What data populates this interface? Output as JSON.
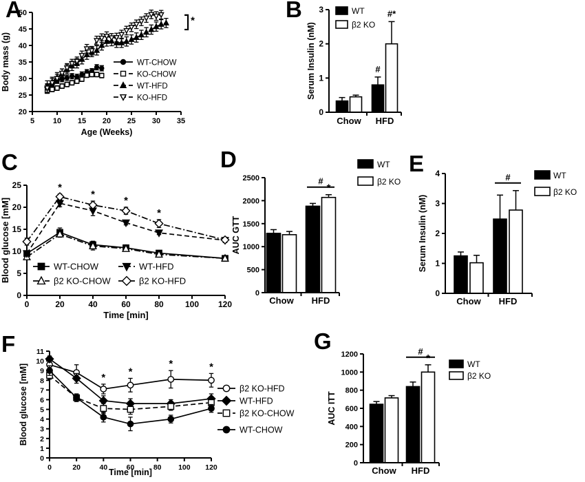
{
  "figure": {
    "background": "#ffffff",
    "ink": "#000000"
  },
  "chart_data": [
    {
      "panel_label": "A",
      "type": "line",
      "xlabel": "Age (Weeks)",
      "ylabel": "Body mass (g)",
      "xlim": [
        5,
        35
      ],
      "xticks": [
        5,
        10,
        15,
        20,
        25,
        30,
        35
      ],
      "ylim": [
        20,
        50
      ],
      "yticks": [
        20,
        25,
        30,
        35,
        40,
        45,
        50
      ],
      "legend_position": "inside-right",
      "series": [
        {
          "name": "WT-CHOW",
          "marker": "circle",
          "fill": "filled",
          "linestyle": "solid",
          "x": [
            8,
            9,
            10,
            11,
            12,
            13,
            14,
            15,
            16,
            17,
            18,
            19
          ],
          "y": [
            27.4,
            28.2,
            29.3,
            29.8,
            30.2,
            30.7,
            30.5,
            31.2,
            31.9,
            32.2,
            33.4,
            33.1
          ],
          "err": 0.8
        },
        {
          "name": "KO-CHOW",
          "marker": "square",
          "fill": "open",
          "linestyle": "dashed",
          "x": [
            8,
            9,
            10,
            11,
            12,
            13,
            14,
            15,
            16,
            17,
            18,
            19
          ],
          "y": [
            26.2,
            26.7,
            27.1,
            27.7,
            28.2,
            28.7,
            29.2,
            29.8,
            31.0,
            31.2,
            31.2,
            30.9
          ],
          "err": 0.7
        },
        {
          "name": "WT-HFD",
          "marker": "triangle-up",
          "fill": "filled",
          "linestyle": "dashed",
          "x": [
            8,
            9,
            10,
            11,
            12,
            13,
            14,
            15,
            16,
            17,
            18,
            19,
            20,
            21,
            22,
            23,
            24,
            25,
            26,
            27,
            28,
            29,
            30,
            31,
            32
          ],
          "y": [
            27.9,
            29.0,
            30.4,
            31.5,
            32.8,
            33.8,
            34.6,
            35.8,
            37.2,
            38.0,
            38.5,
            40.0,
            41.2,
            41.3,
            40.8,
            40.8,
            41.2,
            41.8,
            42.4,
            43.2,
            44.0,
            44.8,
            45.7,
            46.4,
            46.8
          ],
          "err": 1.4
        },
        {
          "name": "KO-HFD",
          "marker": "triangle-down",
          "fill": "open",
          "linestyle": "dashed",
          "x": [
            8,
            9,
            10,
            11,
            12,
            13,
            14,
            15,
            16,
            17,
            18,
            19,
            20,
            21,
            22,
            23,
            24,
            25,
            26,
            27,
            28,
            29,
            30,
            31
          ],
          "y": [
            27.1,
            28.7,
            30.0,
            31.6,
            33.2,
            34.5,
            35.2,
            37.0,
            39.0,
            38.4,
            41.5,
            42.2,
            42.8,
            42.3,
            42.4,
            43.3,
            44.5,
            45.5,
            46.4,
            47.3,
            48.3,
            49.4,
            48.9,
            49.3
          ],
          "err": 1.3
        }
      ],
      "annotations": [
        {
          "type": "bracket",
          "x": 36.4,
          "y1": 44.8,
          "y2": 49.2,
          "text": "*"
        }
      ]
    },
    {
      "panel_label": "B",
      "type": "bar",
      "ylabel": "Serum Insulin (nM)",
      "ylim": [
        0,
        3
      ],
      "yticks": [
        0,
        1,
        2,
        3
      ],
      "categories": [
        "Chow",
        "HFD"
      ],
      "series": [
        {
          "name": "WT",
          "fill": "filled",
          "values": [
            0.33,
            0.8
          ],
          "errors": [
            0.1,
            0.23
          ]
        },
        {
          "name": "β2 KO",
          "fill": "open",
          "values": [
            0.45,
            2.0
          ],
          "errors": [
            0.05,
            0.65
          ]
        }
      ],
      "annotations": [
        {
          "type": "text",
          "text": "#",
          "category": 1,
          "series": 0
        },
        {
          "type": "text",
          "text": "#*",
          "category": 1,
          "series": 1
        }
      ]
    },
    {
      "panel_label": "C",
      "type": "line",
      "xlabel": "Time [min]",
      "ylabel": "Blood glucose [mM]",
      "xlim": [
        0,
        120
      ],
      "xticks": [
        0,
        20,
        40,
        60,
        80,
        100,
        120
      ],
      "ylim": [
        0,
        25
      ],
      "yticks": [
        0,
        5,
        10,
        15,
        20,
        25
      ],
      "legend_position": "inside-bottom",
      "series": [
        {
          "name": "WT-CHOW",
          "marker": "square",
          "fill": "filled",
          "linestyle": "solid",
          "x": [
            0,
            20,
            40,
            60,
            80,
            120
          ],
          "y": [
            9.5,
            14.3,
            11.5,
            10.8,
            9.6,
            8.4
          ],
          "err": [
            0.5,
            1.0,
            0.8,
            0.5,
            0.6,
            0.3
          ]
        },
        {
          "name": "β2 KO-CHOW",
          "marker": "triangle-up",
          "fill": "open",
          "linestyle": "dashdot",
          "x": [
            0,
            20,
            40,
            60,
            80,
            120
          ],
          "y": [
            8.7,
            13.9,
            11.2,
            10.6,
            9.3,
            8.4
          ],
          "err": [
            0.4,
            0.7,
            0.9,
            0.4,
            0.5,
            0.3
          ]
        },
        {
          "name": "WT-HFD",
          "marker": "triangle-down",
          "fill": "filled",
          "linestyle": "dashed",
          "x": [
            0,
            20,
            40,
            60,
            80,
            120
          ],
          "y": [
            9.5,
            20.9,
            19.2,
            16.5,
            14.2,
            12.5
          ],
          "err": [
            0.6,
            0.8,
            1.1,
            0.5,
            0.4,
            0.5
          ]
        },
        {
          "name": "β2 KO-HFD",
          "marker": "diamond",
          "fill": "open",
          "linestyle": "dashdot",
          "x": [
            0,
            20,
            40,
            60,
            80,
            120
          ],
          "y": [
            12.2,
            22.4,
            20.5,
            19.2,
            16.3,
            12.6
          ],
          "err": [
            0.8,
            0.6,
            0.9,
            0.8,
            0.9,
            0.6
          ]
        }
      ],
      "annotations": [
        {
          "type": "stars",
          "series": 3,
          "xs": [
            20,
            40,
            60,
            80
          ],
          "text": "*"
        }
      ]
    },
    {
      "panel_label": "D",
      "type": "bar",
      "ylabel": "AUC GTT",
      "ylim": [
        0,
        2500
      ],
      "yticks": [
        0,
        500,
        1000,
        1500,
        2000,
        2500
      ],
      "categories": [
        "Chow",
        "HFD"
      ],
      "series": [
        {
          "name": "WT",
          "fill": "filled",
          "values": [
            1290,
            1880
          ],
          "errors": [
            80,
            60
          ]
        },
        {
          "name": "β2 KO",
          "fill": "open",
          "values": [
            1260,
            2070
          ],
          "errors": [
            70,
            60
          ]
        }
      ],
      "annotations": [
        {
          "type": "hash-line",
          "category": 1,
          "text": "#"
        },
        {
          "type": "star",
          "category": 1,
          "series": 1,
          "text": "*"
        }
      ]
    },
    {
      "panel_label": "E",
      "type": "bar",
      "ylabel": "Serum Insulin (nM)",
      "ylim": [
        0,
        4
      ],
      "yticks": [
        0,
        1,
        2,
        3,
        4
      ],
      "categories": [
        "Chow",
        "HFD"
      ],
      "series": [
        {
          "name": "WT",
          "fill": "filled",
          "values": [
            1.25,
            2.48
          ],
          "errors": [
            0.13,
            0.8
          ]
        },
        {
          "name": "β2 KO",
          "fill": "open",
          "values": [
            1.02,
            2.78
          ],
          "errors": [
            0.25,
            0.65
          ]
        }
      ],
      "annotations": [
        {
          "type": "hash-line",
          "category": 1,
          "text": "#"
        }
      ]
    },
    {
      "panel_label": "F",
      "type": "line",
      "xlabel": "Time [min]",
      "ylabel": "Blood glucose [mM]",
      "xlim": [
        0,
        120
      ],
      "xticks": [
        0,
        20,
        40,
        60,
        80,
        100,
        120
      ],
      "ylim": [
        0,
        11
      ],
      "yticks": [
        0,
        1,
        2,
        3,
        4,
        5,
        6,
        7,
        8,
        9,
        10,
        11
      ],
      "legend_position": "outside-right",
      "series": [
        {
          "name": "β2 KO-HFD",
          "marker": "circle",
          "fill": "open",
          "linestyle": "solid",
          "x": [
            0,
            20,
            40,
            60,
            90,
            120
          ],
          "y": [
            9.6,
            8.8,
            7.1,
            7.5,
            8.1,
            8.0
          ],
          "err": [
            0.5,
            0.8,
            0.5,
            0.7,
            0.9,
            0.7
          ]
        },
        {
          "name": "WT-HFD",
          "marker": "diamond",
          "fill": "filled",
          "linestyle": "solid",
          "x": [
            0,
            20,
            40,
            60,
            90,
            120
          ],
          "y": [
            10.2,
            8.2,
            5.9,
            5.6,
            5.6,
            6.1
          ],
          "err": [
            0.3,
            0.5,
            0.5,
            0.5,
            0.4,
            0.5
          ]
        },
        {
          "name": "β2 KO-CHOW",
          "marker": "square",
          "fill": "open",
          "linestyle": "dashed",
          "x": [
            0,
            20,
            40,
            60,
            90,
            120
          ],
          "y": [
            8.5,
            6.2,
            5.1,
            5.0,
            5.3,
            5.7
          ],
          "err": [
            0.4,
            0.3,
            0.5,
            0.5,
            0.4,
            0.5
          ]
        },
        {
          "name": "WT-CHOW",
          "marker": "circle",
          "fill": "filled",
          "linestyle": "solid",
          "x": [
            0,
            20,
            40,
            60,
            90,
            120
          ],
          "y": [
            9.0,
            6.2,
            4.2,
            3.5,
            4.0,
            5.1
          ],
          "err": [
            0.5,
            0.4,
            0.5,
            0.7,
            0.4,
            0.4
          ]
        }
      ],
      "annotations": [
        {
          "type": "stars",
          "series": 0,
          "xs": [
            40,
            60,
            90,
            120
          ],
          "text": "*"
        }
      ]
    },
    {
      "panel_label": "G",
      "type": "bar",
      "ylabel": "AUC ITT",
      "ylim": [
        0,
        1200
      ],
      "yticks": [
        0,
        200,
        400,
        600,
        800,
        1000,
        1200
      ],
      "categories": [
        "Chow",
        "HFD"
      ],
      "series": [
        {
          "name": "WT",
          "fill": "filled",
          "values": [
            645,
            840
          ],
          "errors": [
            30,
            50
          ]
        },
        {
          "name": "β2 KO",
          "fill": "open",
          "values": [
            715,
            1000
          ],
          "errors": [
            25,
            80
          ]
        }
      ],
      "annotations": [
        {
          "type": "hash-line",
          "category": 1,
          "text": "#"
        },
        {
          "type": "star",
          "category": 1,
          "series": 1,
          "text": "*"
        }
      ]
    }
  ]
}
